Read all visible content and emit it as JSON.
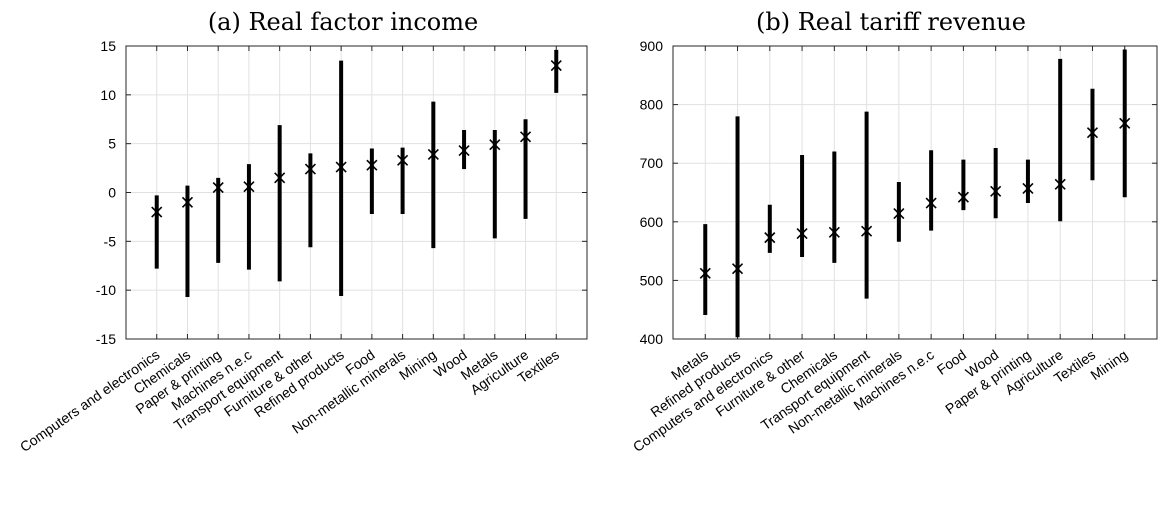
{
  "chart_data": [
    {
      "type": "errorbar",
      "title": "(a) Real factor income",
      "xlabel": "",
      "ylabel": "",
      "ylim": [
        -15,
        15
      ],
      "yticks": [
        -15,
        -10,
        -5,
        0,
        5,
        10,
        15
      ],
      "grid": true,
      "marker": "x",
      "categories": [
        "Computers and electronics",
        "Chemicals",
        "Paper & printing",
        "Machines n.e.c",
        "Transport equipment",
        "Furniture & other",
        "Refined products",
        "Food",
        "Non-metallic minerals",
        "Mining",
        "Wood",
        "Metals",
        "Agriculture",
        "Textiles"
      ],
      "center": [
        -2.0,
        -1.0,
        0.5,
        0.6,
        1.5,
        2.4,
        2.6,
        2.8,
        3.3,
        3.9,
        4.3,
        4.9,
        5.7,
        13.0
      ],
      "low": [
        -7.8,
        -10.7,
        -7.2,
        -7.9,
        -9.1,
        -5.6,
        -10.6,
        -2.2,
        -2.2,
        -5.7,
        2.4,
        -4.7,
        -2.7,
        10.2
      ],
      "high": [
        -0.3,
        0.7,
        1.5,
        2.9,
        6.9,
        4.0,
        13.5,
        4.5,
        4.6,
        9.3,
        6.4,
        6.4,
        7.5,
        14.6
      ]
    },
    {
      "type": "errorbar",
      "title": "(b) Real tariff revenue",
      "xlabel": "",
      "ylabel": "",
      "ylim": [
        400,
        900
      ],
      "yticks": [
        400,
        500,
        600,
        700,
        800,
        900
      ],
      "grid": true,
      "marker": "x",
      "categories": [
        "Metals",
        "Refined products",
        "Computers and electronics",
        "Furniture & other",
        "Chemicals",
        "Transport equipment",
        "Non-metallic minerals",
        "Machines n.e.c",
        "Food",
        "Wood",
        "Paper & printing",
        "Agriculture",
        "Textiles",
        "Mining"
      ],
      "center": [
        512,
        520,
        573,
        580,
        582,
        584,
        614,
        632,
        642,
        652,
        657,
        664,
        752,
        768
      ],
      "low": [
        441,
        403,
        547,
        540,
        530,
        469,
        566,
        585,
        620,
        606,
        632,
        601,
        671,
        642
      ],
      "high": [
        596,
        780,
        629,
        714,
        720,
        788,
        668,
        722,
        706,
        726,
        706,
        878,
        827,
        894
      ]
    }
  ]
}
